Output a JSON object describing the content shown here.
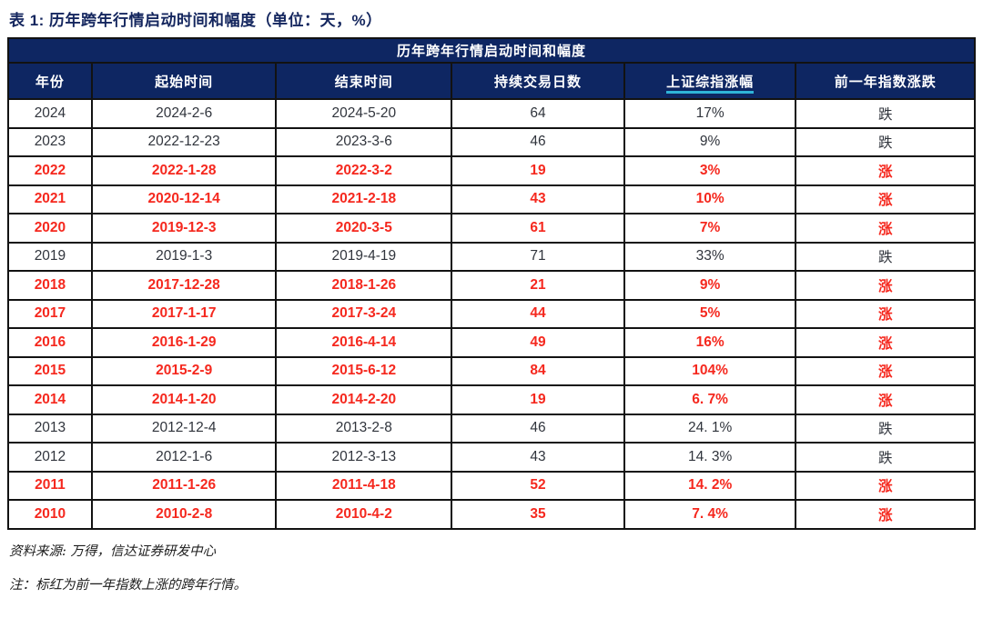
{
  "page": {
    "title": "表 1: 历年跨年行情启动时间和幅度（单位：天，%）"
  },
  "table": {
    "band_title": "历年跨年行情启动时间和幅度",
    "columns": [
      {
        "label": "年份",
        "underline": false
      },
      {
        "label": "起始时间",
        "underline": false
      },
      {
        "label": "结束时间",
        "underline": false
      },
      {
        "label": "持续交易日数",
        "underline": false
      },
      {
        "label": "上证综指涨幅",
        "underline": true
      },
      {
        "label": "前一年指数涨跌",
        "underline": false
      }
    ],
    "rows": [
      {
        "year": "2024",
        "start": "2024-2-6",
        "end": "2024-5-20",
        "days": "64",
        "gain": "17%",
        "prev": "跌",
        "up": false
      },
      {
        "year": "2023",
        "start": "2022-12-23",
        "end": "2023-3-6",
        "days": "46",
        "gain": "9%",
        "prev": "跌",
        "up": false
      },
      {
        "year": "2022",
        "start": "2022-1-28",
        "end": "2022-3-2",
        "days": "19",
        "gain": "3%",
        "prev": "涨",
        "up": true
      },
      {
        "year": "2021",
        "start": "2020-12-14",
        "end": "2021-2-18",
        "days": "43",
        "gain": "10%",
        "prev": "涨",
        "up": true
      },
      {
        "year": "2020",
        "start": "2019-12-3",
        "end": "2020-3-5",
        "days": "61",
        "gain": "7%",
        "prev": "涨",
        "up": true
      },
      {
        "year": "2019",
        "start": "2019-1-3",
        "end": "2019-4-19",
        "days": "71",
        "gain": "33%",
        "prev": "跌",
        "up": false
      },
      {
        "year": "2018",
        "start": "2017-12-28",
        "end": "2018-1-26",
        "days": "21",
        "gain": "9%",
        "prev": "涨",
        "up": true
      },
      {
        "year": "2017",
        "start": "2017-1-17",
        "end": "2017-3-24",
        "days": "44",
        "gain": "5%",
        "prev": "涨",
        "up": true
      },
      {
        "year": "2016",
        "start": "2016-1-29",
        "end": "2016-4-14",
        "days": "49",
        "gain": "16%",
        "prev": "涨",
        "up": true
      },
      {
        "year": "2015",
        "start": "2015-2-9",
        "end": "2015-6-12",
        "days": "84",
        "gain": "104%",
        "prev": "涨",
        "up": true
      },
      {
        "year": "2014",
        "start": "2014-1-20",
        "end": "2014-2-20",
        "days": "19",
        "gain": "6. 7%",
        "prev": "涨",
        "up": true
      },
      {
        "year": "2013",
        "start": "2012-12-4",
        "end": "2013-2-8",
        "days": "46",
        "gain": "24. 1%",
        "prev": "跌",
        "up": false
      },
      {
        "year": "2012",
        "start": "2012-1-6",
        "end": "2012-3-13",
        "days": "43",
        "gain": "14. 3%",
        "prev": "跌",
        "up": false
      },
      {
        "year": "2011",
        "start": "2011-1-26",
        "end": "2011-4-18",
        "days": "52",
        "gain": "14. 2%",
        "prev": "涨",
        "up": true
      },
      {
        "year": "2010",
        "start": "2010-2-8",
        "end": "2010-4-2",
        "days": "35",
        "gain": "7. 4%",
        "prev": "涨",
        "up": true
      }
    ],
    "column_widths_pct": [
      8.65,
      19.08,
      18.14,
      17.86,
      17.76,
      18.51
    ]
  },
  "footer": {
    "source": "资料来源: 万得，信达证券研发中心",
    "note": "注：标红为前一年指数上涨的跨年行情。"
  },
  "colors": {
    "header_navy": "#0e2662",
    "highlight_red": "#f5281e",
    "underline_cyan": "#2fb4d8",
    "title_navy": "#14265e",
    "body_text": "#30343c"
  }
}
